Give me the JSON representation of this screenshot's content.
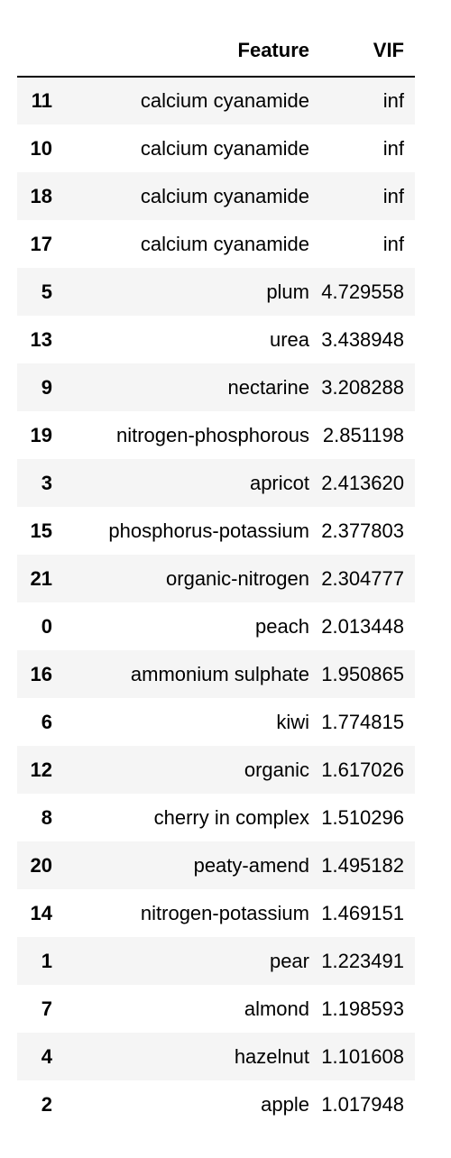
{
  "table": {
    "headers": {
      "index": "",
      "feature": "Feature",
      "vif": "VIF"
    },
    "rows": [
      {
        "index": "11",
        "feature": "calcium cyanamide",
        "vif": "inf"
      },
      {
        "index": "10",
        "feature": "calcium cyanamide",
        "vif": "inf"
      },
      {
        "index": "18",
        "feature": "calcium cyanamide",
        "vif": "inf"
      },
      {
        "index": "17",
        "feature": "calcium cyanamide",
        "vif": "inf"
      },
      {
        "index": "5",
        "feature": "plum",
        "vif": "4.729558"
      },
      {
        "index": "13",
        "feature": "urea",
        "vif": "3.438948"
      },
      {
        "index": "9",
        "feature": "nectarine",
        "vif": "3.208288"
      },
      {
        "index": "19",
        "feature": "nitrogen-phosphorous",
        "vif": "2.851198"
      },
      {
        "index": "3",
        "feature": "apricot",
        "vif": "2.413620"
      },
      {
        "index": "15",
        "feature": "phosphorus-potassium",
        "vif": "2.377803"
      },
      {
        "index": "21",
        "feature": "organic-nitrogen",
        "vif": "2.304777"
      },
      {
        "index": "0",
        "feature": "peach",
        "vif": "2.013448"
      },
      {
        "index": "16",
        "feature": "ammonium sulphate",
        "vif": "1.950865"
      },
      {
        "index": "6",
        "feature": "kiwi",
        "vif": "1.774815"
      },
      {
        "index": "12",
        "feature": "organic",
        "vif": "1.617026"
      },
      {
        "index": "8",
        "feature": "cherry in complex",
        "vif": "1.510296"
      },
      {
        "index": "20",
        "feature": "peaty-amend",
        "vif": "1.495182"
      },
      {
        "index": "14",
        "feature": "nitrogen-potassium",
        "vif": "1.469151"
      },
      {
        "index": "1",
        "feature": "pear",
        "vif": "1.223491"
      },
      {
        "index": "7",
        "feature": "almond",
        "vif": "1.198593"
      },
      {
        "index": "4",
        "feature": "hazelnut",
        "vif": "1.101608"
      },
      {
        "index": "2",
        "feature": "apple",
        "vif": "1.017948"
      }
    ]
  }
}
